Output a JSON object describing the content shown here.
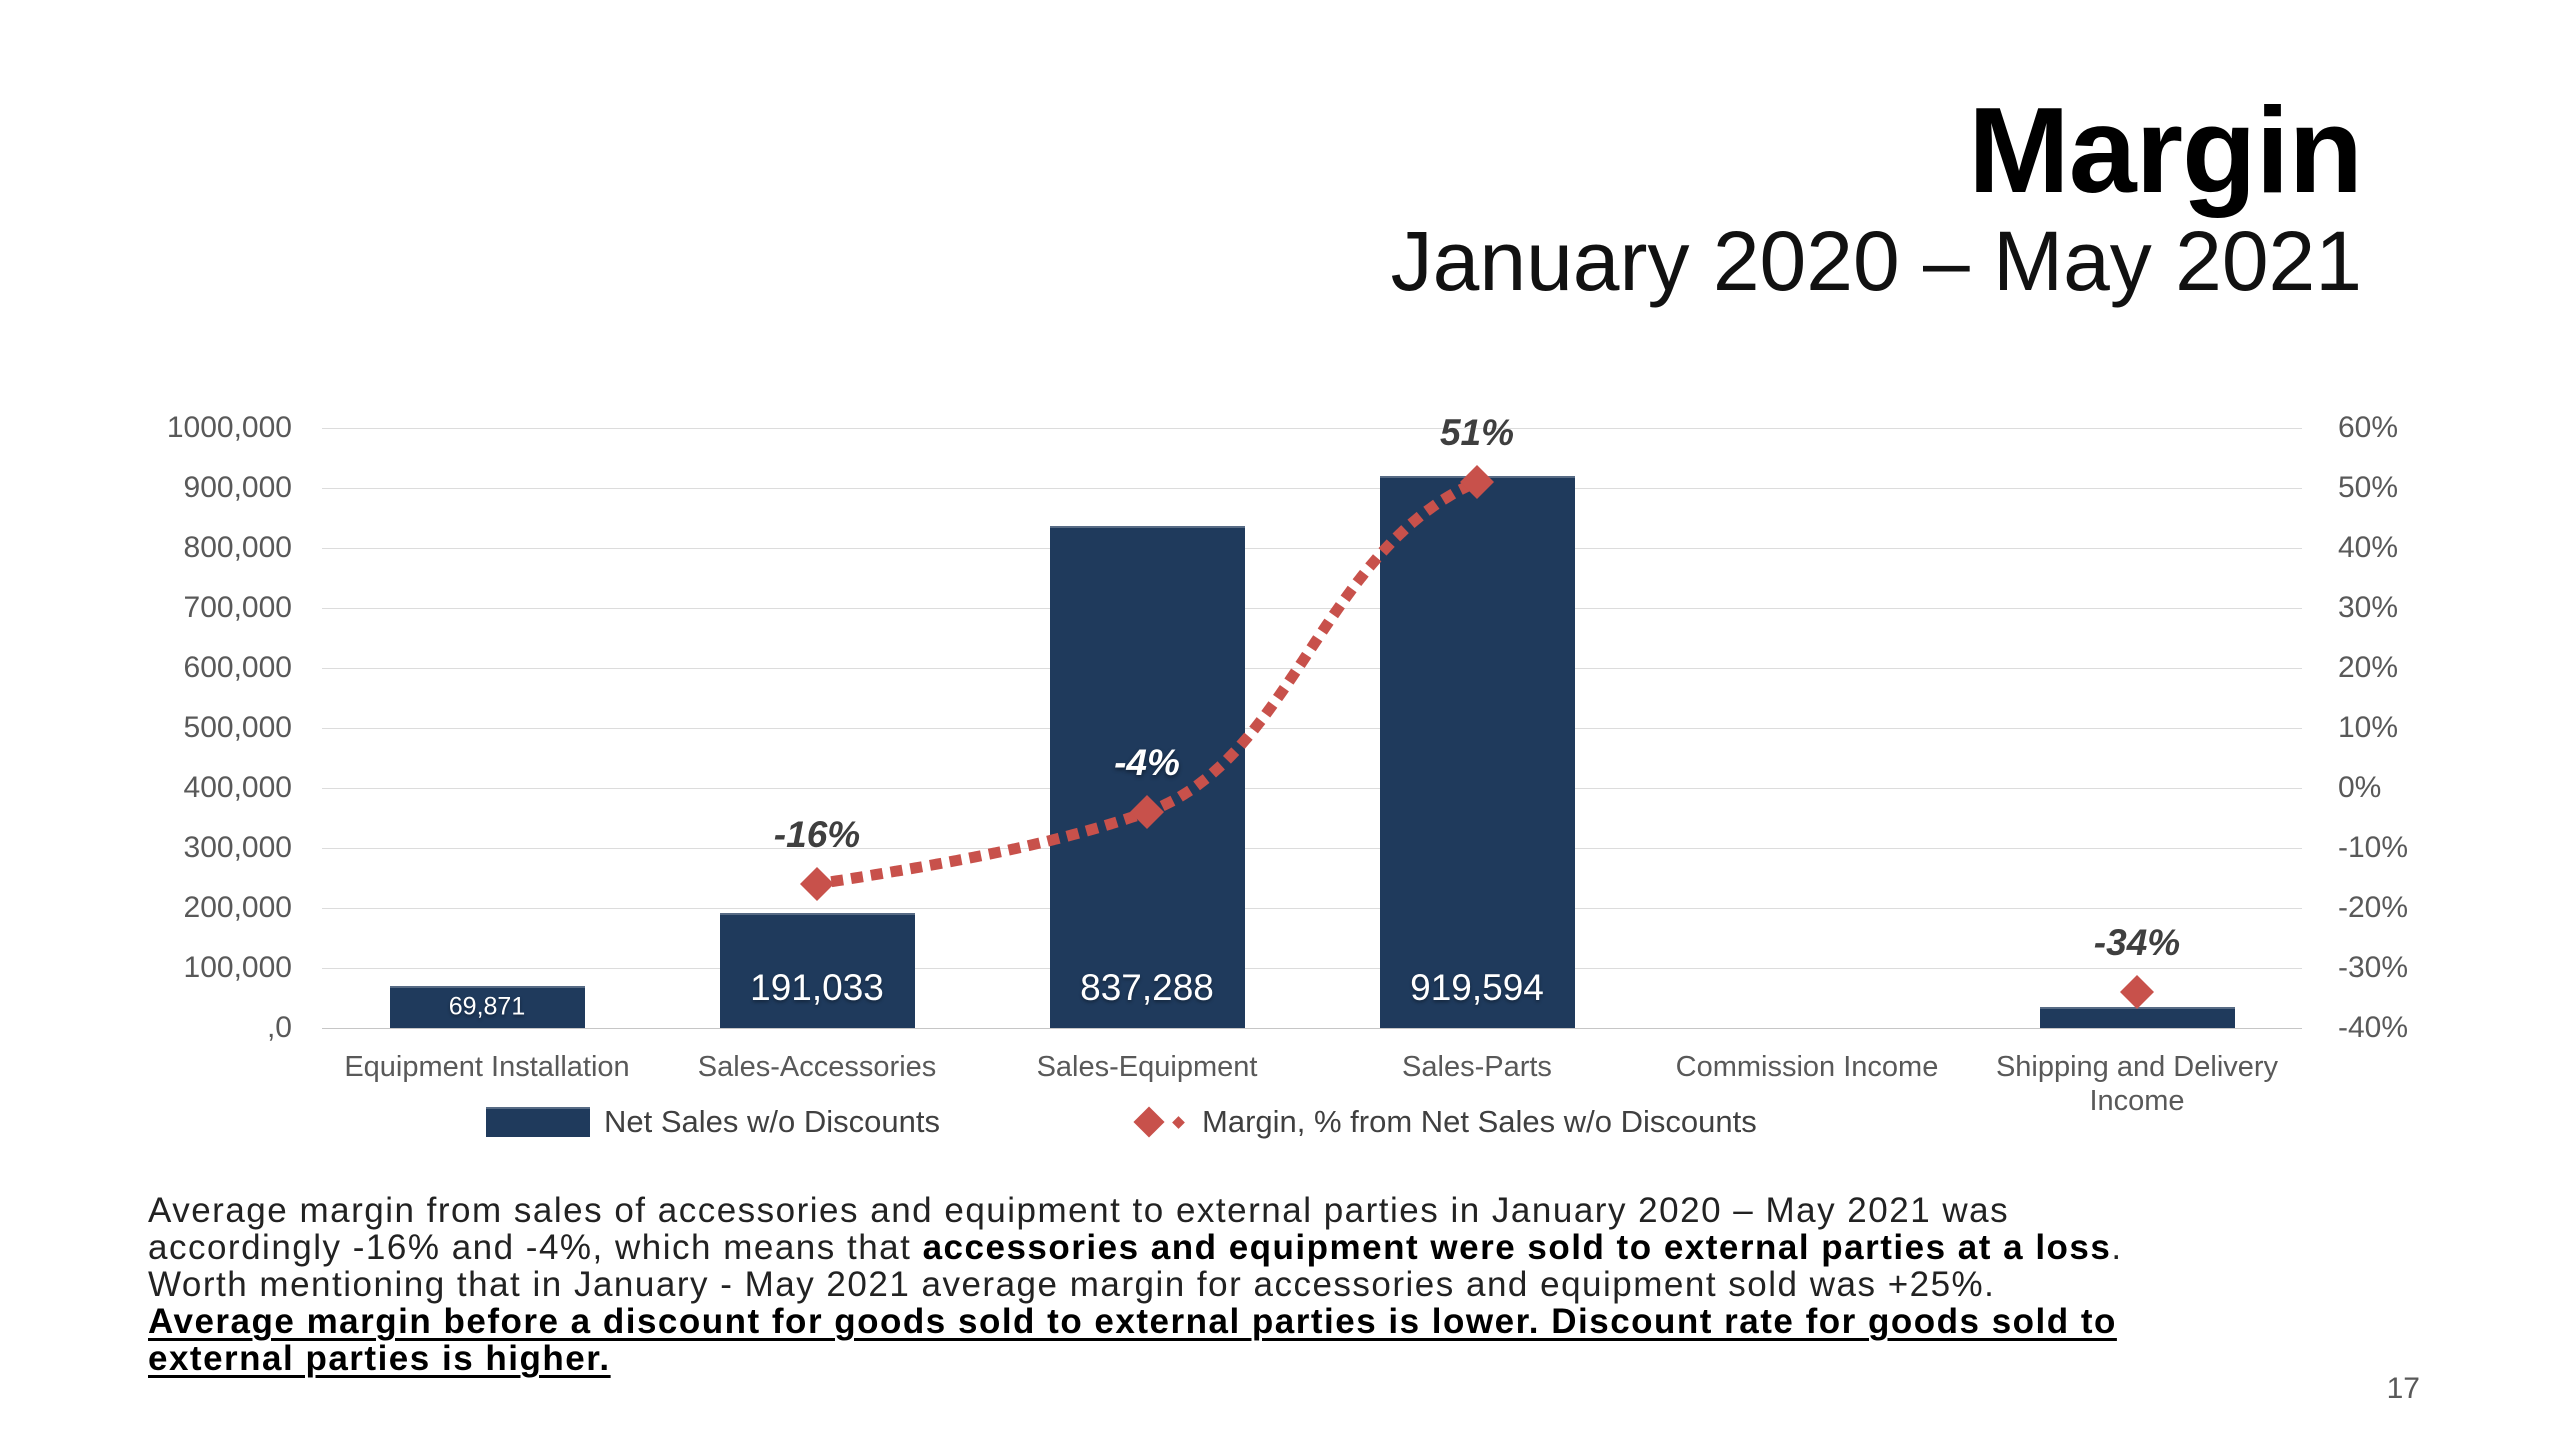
{
  "slide": {
    "title": "Margin",
    "subtitle": "January 2020 – May 2021",
    "page_number": "17"
  },
  "colors": {
    "bar": "#1F3A5C",
    "line": "#C8514B",
    "axis_text": "#595959",
    "grid": "#DCDCDC",
    "point_label_dark": "#3F3F3F",
    "point_label_light": "#FFFFFF"
  },
  "chart_data": {
    "type": "bar",
    "title": "",
    "xlabel": "",
    "ylabel": "",
    "grid": true,
    "legend_position": "bottom",
    "categories": [
      "Equipment Installation",
      "Sales-Accessories",
      "Sales-Equipment",
      "Sales-Parts",
      "Commission Income",
      "Shipping and Delivery Income"
    ],
    "series": [
      {
        "name": "Net Sales w/o Discounts",
        "kind": "bar",
        "axis": "left",
        "color": "#1F3A5C",
        "values": [
          69871,
          191033,
          837288,
          919594,
          0,
          35000
        ],
        "value_labels": [
          "69,871",
          "191,033",
          "837,288",
          "919,594",
          "",
          ""
        ]
      },
      {
        "name": "Margin, % from Net Sales w/o Discounts",
        "kind": "line",
        "axis": "right",
        "color": "#C8514B",
        "values": [
          null,
          -16,
          -4,
          51,
          null,
          -34
        ],
        "point_labels": [
          "",
          "-16%",
          "-4%",
          "51%",
          "",
          "-34%"
        ],
        "point_label_styles": [
          "",
          "dark",
          "light",
          "dark",
          "",
          "dark"
        ]
      }
    ],
    "left_axis": {
      "min": 0,
      "max": 1000000,
      "ticks": [
        "1000,000",
        "900,000",
        "800,000",
        "700,000",
        "600,000",
        "500,000",
        "400,000",
        "300,000",
        "200,000",
        "100,000",
        ",0"
      ]
    },
    "right_axis": {
      "min": -40,
      "max": 60,
      "ticks": [
        "60%",
        "50%",
        "40%",
        "30%",
        "20%",
        "10%",
        "0%",
        "-10%",
        "-20%",
        "-30%",
        "-40%"
      ]
    }
  },
  "paragraph": {
    "lines": [
      [
        {
          "t": "Average margin from sales of accessories and equipment to external parties in January 2020 – May 2021 was",
          "s": "n"
        }
      ],
      [
        {
          "t": "accordingly -16% and -4%, which means that ",
          "s": "n"
        },
        {
          "t": "accessories and equipment were sold to external parties at a loss",
          "s": "b"
        },
        {
          "t": ".",
          "s": "n"
        }
      ],
      [
        {
          "t": "Worth mentioning that in January - May 2021 average margin for accessories and equipment sold was +25%.",
          "s": "n"
        }
      ],
      [
        {
          "t": "Average margin before a discount for goods sold to external parties is lower. Discount rate for goods sold to",
          "s": "bu"
        }
      ],
      [
        {
          "t": "external parties is higher.",
          "s": "bu"
        }
      ]
    ]
  }
}
